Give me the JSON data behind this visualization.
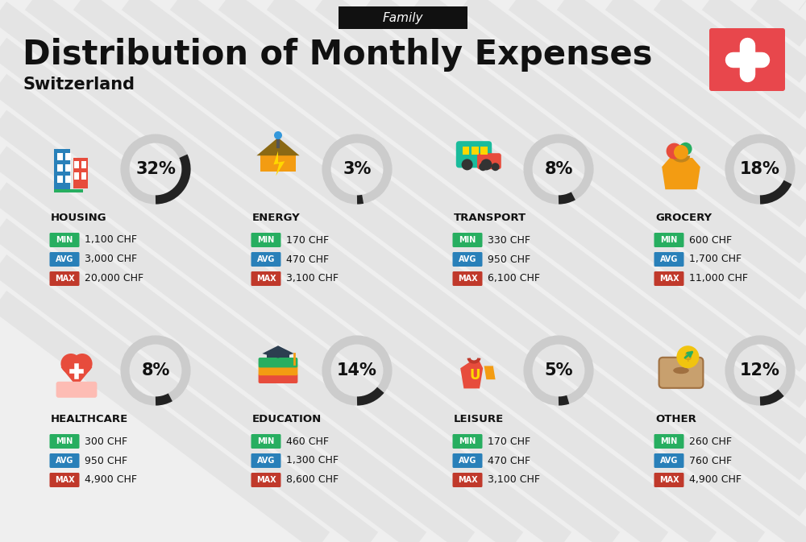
{
  "title": "Distribution of Monthly Expenses",
  "subtitle": "Switzerland",
  "header_label": "Family",
  "background_color": "#efefef",
  "header_bg": "#111111",
  "header_text_color": "#ffffff",
  "title_color": "#111111",
  "subtitle_color": "#111111",
  "swiss_cross_bg": "#e8474c",
  "categories": [
    {
      "name": "HOUSING",
      "pct": 32,
      "min": "1,100 CHF",
      "avg": "3,000 CHF",
      "max": "20,000 CHF",
      "col": 0,
      "row": 0
    },
    {
      "name": "ENERGY",
      "pct": 3,
      "min": "170 CHF",
      "avg": "470 CHF",
      "max": "3,100 CHF",
      "col": 1,
      "row": 0
    },
    {
      "name": "TRANSPORT",
      "pct": 8,
      "min": "330 CHF",
      "avg": "950 CHF",
      "max": "6,100 CHF",
      "col": 2,
      "row": 0
    },
    {
      "name": "GROCERY",
      "pct": 18,
      "min": "600 CHF",
      "avg": "1,700 CHF",
      "max": "11,000 CHF",
      "col": 3,
      "row": 0
    },
    {
      "name": "HEALTHCARE",
      "pct": 8,
      "min": "300 CHF",
      "avg": "950 CHF",
      "max": "4,900 CHF",
      "col": 0,
      "row": 1
    },
    {
      "name": "EDUCATION",
      "pct": 14,
      "min": "460 CHF",
      "avg": "1,300 CHF",
      "max": "8,600 CHF",
      "col": 1,
      "row": 1
    },
    {
      "name": "LEISURE",
      "pct": 5,
      "min": "170 CHF",
      "avg": "470 CHF",
      "max": "3,100 CHF",
      "col": 2,
      "row": 1
    },
    {
      "name": "OTHER",
      "pct": 12,
      "min": "260 CHF",
      "avg": "760 CHF",
      "max": "4,900 CHF",
      "col": 3,
      "row": 1
    }
  ],
  "min_color": "#27ae60",
  "avg_color": "#2980b9",
  "max_color": "#c0392b",
  "label_text_color": "#ffffff",
  "value_text_color": "#111111",
  "circle_filled_color": "#222222",
  "circle_empty_color": "#cccccc",
  "stripe_color": "#d0d0d0",
  "pct_fontsize": 15,
  "cat_fontsize": 9.5,
  "val_fontsize": 9,
  "badge_fontsize": 7
}
